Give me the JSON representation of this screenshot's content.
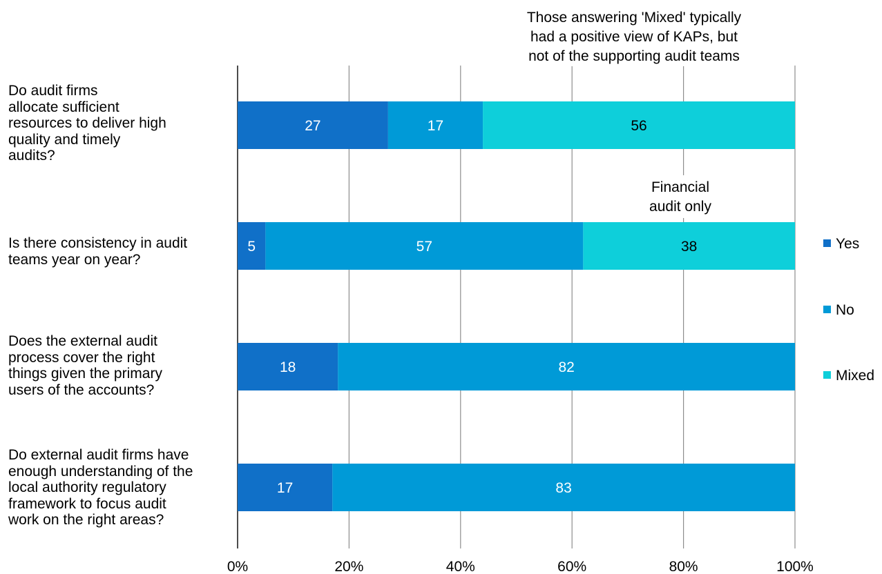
{
  "chart_data": {
    "type": "bar",
    "orientation": "horizontal",
    "stacked": true,
    "categories": [
      "Do audit firms\nallocate sufficient\nresources to deliver high\nquality and timely\naudits?",
      "Is there consistency in audit\nteams year on year?",
      "Does the external audit\nprocess cover the right\nthings given the primary\nusers of the accounts?",
      "Do external audit firms have\nenough understanding of the\nlocal authority regulatory\nframework to focus audit\nwork on the right areas?"
    ],
    "series": [
      {
        "name": "Yes",
        "color": "#1070C8",
        "values": [
          27,
          5,
          18,
          17
        ]
      },
      {
        "name": "No",
        "color": "#009AD7",
        "values": [
          17,
          57,
          82,
          83
        ]
      },
      {
        "name": "Mixed",
        "color": "#0ECFDA",
        "values": [
          56,
          38,
          0,
          0
        ]
      }
    ],
    "data_labels": [
      [
        "27",
        "17",
        "56"
      ],
      [
        "5",
        "57",
        "38"
      ],
      [
        "18",
        "82",
        ""
      ],
      [
        "17",
        "83",
        ""
      ]
    ],
    "xlim": [
      0,
      100
    ],
    "x_ticks": [
      0,
      20,
      40,
      60,
      80,
      100
    ],
    "x_tick_labels": [
      "0%",
      "20%",
      "40%",
      "60%",
      "80%",
      "100%"
    ],
    "grid": true,
    "legend_position": "right",
    "title": "",
    "xlabel": "",
    "ylabel": "",
    "annotations": [
      {
        "text": "Those answering 'Mixed' typically\nhad a positive view of KAPs, but\nnot of the supporting audit teams",
        "x": 72,
        "category_index": 0,
        "placement": "above"
      },
      {
        "text": "Financial\naudit only",
        "x": 80,
        "category_index": 1,
        "placement": "above"
      }
    ]
  }
}
